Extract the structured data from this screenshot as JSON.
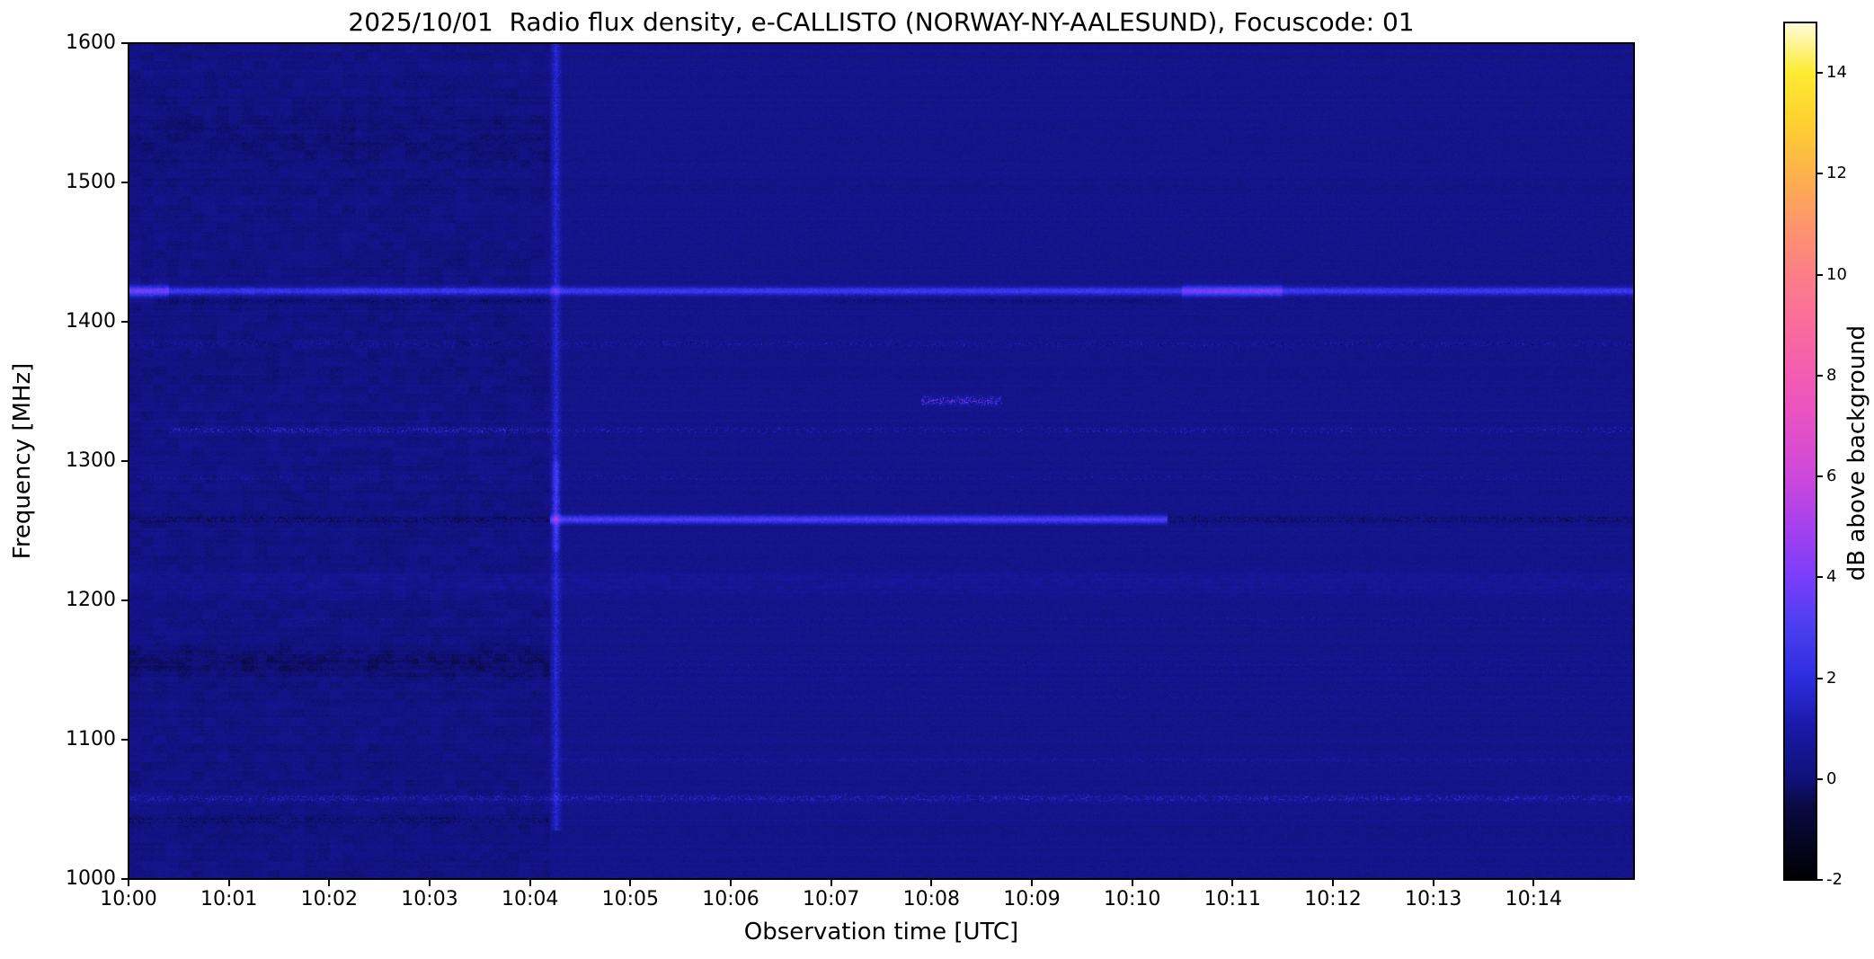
{
  "figure": {
    "background_color": "#ffffff",
    "text_color": "#000000",
    "date": "2025/10/01",
    "station": "NORWAY-NY-AALESUND",
    "focuscode": "01"
  },
  "chart_data": {
    "type": "heatmap",
    "title": "2025/10/01  Radio flux density, e-CALLISTO (NORWAY-NY-AALESUND), Focuscode: 01",
    "xlabel": "Observation time [UTC]",
    "ylabel": "Frequency [MHz]",
    "x_range": [
      "10:00",
      "10:15"
    ],
    "time_span_minutes": 15,
    "x_ticks": [
      {
        "minute": 0,
        "label": "10:00"
      },
      {
        "minute": 1,
        "label": "10:01"
      },
      {
        "minute": 2,
        "label": "10:02"
      },
      {
        "minute": 3,
        "label": "10:03"
      },
      {
        "minute": 4,
        "label": "10:04"
      },
      {
        "minute": 5,
        "label": "10:05"
      },
      {
        "minute": 6,
        "label": "10:06"
      },
      {
        "minute": 7,
        "label": "10:07"
      },
      {
        "minute": 8,
        "label": "10:08"
      },
      {
        "minute": 9,
        "label": "10:09"
      },
      {
        "minute": 10,
        "label": "10:10"
      },
      {
        "minute": 11,
        "label": "10:11"
      },
      {
        "minute": 12,
        "label": "10:12"
      },
      {
        "minute": 13,
        "label": "10:13"
      },
      {
        "minute": 14,
        "label": "10:14"
      }
    ],
    "y_ticks": [
      1000,
      1100,
      1200,
      1300,
      1400,
      1500,
      1600
    ],
    "y_range": [
      1000,
      1600
    ],
    "colorbar": {
      "label": "dB above background",
      "ticks": [
        -2,
        0,
        2,
        4,
        6,
        8,
        10,
        12,
        14
      ],
      "range": [
        -2,
        15
      ]
    },
    "colormap_stops": [
      {
        "value": -2,
        "color": "#000000"
      },
      {
        "value": -0.5,
        "color": "#0a0a46"
      },
      {
        "value": 0,
        "color": "#11117a"
      },
      {
        "value": 1,
        "color": "#1919a5"
      },
      {
        "value": 2,
        "color": "#2d2de0"
      },
      {
        "value": 3,
        "color": "#4b3ef0"
      },
      {
        "value": 4,
        "color": "#7a3efa"
      },
      {
        "value": 5,
        "color": "#a541ee"
      },
      {
        "value": 6,
        "color": "#cd48da"
      },
      {
        "value": 7,
        "color": "#e450c6"
      },
      {
        "value": 8,
        "color": "#f35cb2"
      },
      {
        "value": 9,
        "color": "#fa6c9c"
      },
      {
        "value": 10,
        "color": "#fc7e88"
      },
      {
        "value": 11,
        "color": "#fd966c"
      },
      {
        "value": 12,
        "color": "#fdb24c"
      },
      {
        "value": 13,
        "color": "#fed030"
      },
      {
        "value": 14,
        "color": "#feea32"
      },
      {
        "value": 15,
        "color": "#fffcdc"
      }
    ],
    "base_level": 0.32,
    "noise_db": 0.55,
    "features": {
      "regions": [
        {
          "t_start": 0,
          "t_end": 4.2,
          "amp_db": -0.1,
          "mottled": true,
          "description": "first file segment (10:00-10:04.2): slightly darker mottled background"
        },
        {
          "t_start": 4.2,
          "t_end": 15,
          "amp_db": 0.05,
          "mottled": false,
          "description": "later segment: slightly brighter smoother background"
        }
      ],
      "vertical_events": [
        {
          "t_min": 4.26,
          "halfwidth_min": 0.07,
          "amp_db": 1.6,
          "f_min": 1035,
          "f_max": 1600,
          "description": "bright vertical stripe at ~10:04.3 across most frequencies"
        },
        {
          "t_min": 4.26,
          "halfwidth_min": 0.05,
          "amp_db": 1.3,
          "f_min": 1235,
          "f_max": 1300,
          "description": "strongest part of vertical stripe between 1235 and 1300 MHz"
        }
      ],
      "horizontal_bands": [
        {
          "freq_mhz": 1422,
          "halfwidth_mhz": 3,
          "amp_db": 2.2,
          "mode": "solid",
          "t_start": 0,
          "t_end": 15,
          "density": 1,
          "description": "persistent bright blue interference band near 1422 MHz"
        },
        {
          "freq_mhz": 1422,
          "halfwidth_mhz": 4.5,
          "amp_db": 1.3,
          "mode": "solid",
          "t_start": 10.5,
          "t_end": 11.5,
          "density": 1,
          "description": "brighter segment of 1422 MHz band near 10:11"
        },
        {
          "freq_mhz": 1422,
          "halfwidth_mhz": 5,
          "amp_db": 1.4,
          "mode": "solid",
          "t_start": 0,
          "t_end": 0.4,
          "density": 1,
          "description": "bright start of 1422 MHz band at 10:00"
        },
        {
          "freq_mhz": 1415,
          "halfwidth_mhz": 2,
          "amp_db": -1.2,
          "mode": "speckle",
          "t_start": 0.3,
          "t_end": 4.2,
          "density": 0.5,
          "description": "dark dropout speckles just below 1422 band"
        },
        {
          "freq_mhz": 1415,
          "halfwidth_mhz": 2,
          "amp_db": -1.0,
          "mode": "speckle",
          "t_start": 6.9,
          "t_end": 10.4,
          "density": 0.45,
          "description": "dark dropout speckles just below 1422 band"
        },
        {
          "freq_mhz": 1384,
          "halfwidth_mhz": 2.5,
          "amp_db": 1.4,
          "mode": "speckle",
          "t_start": 0,
          "t_end": 15,
          "density": 0.5,
          "description": "speckled band at 1384 MHz"
        },
        {
          "freq_mhz": 1384,
          "halfwidth_mhz": 2.5,
          "amp_db": -0.9,
          "mode": "speckle",
          "t_start": 0,
          "t_end": 15,
          "density": 0.3,
          "description": "dark speckles mixed into 1384 MHz band"
        },
        {
          "freq_mhz": 1343,
          "halfwidth_mhz": 3,
          "amp_db": 5.5,
          "mode": "speckle",
          "t_start": 7.9,
          "t_end": 8.7,
          "density": 0.55,
          "description": "bright magenta burst near 1343 MHz around 10:08-10:09"
        },
        {
          "freq_mhz": 1322,
          "halfwidth_mhz": 2.5,
          "amp_db": 3.2,
          "mode": "speckle",
          "t_start": 0.4,
          "t_end": 4.2,
          "density": 0.45,
          "description": "dense violet/pink speckles at 1322 MHz before 10:04"
        },
        {
          "freq_mhz": 1322,
          "halfwidth_mhz": 2.5,
          "amp_db": 2.4,
          "mode": "speckle",
          "t_start": 4.2,
          "t_end": 15,
          "density": 0.22,
          "description": "sparse speckles at 1322 MHz after 10:04"
        },
        {
          "freq_mhz": 1288,
          "halfwidth_mhz": 2.5,
          "amp_db": 1.3,
          "mode": "speckle",
          "t_start": 0,
          "t_end": 15,
          "density": 0.35,
          "description": "faint speckled band at 1288 MHz"
        },
        {
          "freq_mhz": 1258,
          "halfwidth_mhz": 3,
          "amp_db": -1.3,
          "mode": "speckle",
          "t_start": 0,
          "t_end": 4.2,
          "density": 0.7,
          "description": "dark speckled band at 1258 MHz before 10:04"
        },
        {
          "freq_mhz": 1258,
          "halfwidth_mhz": 3,
          "amp_db": 2.5,
          "mode": "solid",
          "t_start": 4.2,
          "t_end": 10.35,
          "density": 1,
          "description": "bright blue band at 1258 MHz between 10:04 and 10:10"
        },
        {
          "freq_mhz": 1258,
          "halfwidth_mhz": 3,
          "amp_db": -1.4,
          "mode": "speckle",
          "t_start": 10.35,
          "t_end": 15,
          "density": 0.7,
          "description": "dark speckled band at 1258 MHz after 10:10"
        },
        {
          "freq_mhz": 1213,
          "halfwidth_mhz": 9,
          "amp_db": 0.45,
          "mode": "texture",
          "t_start": 0,
          "t_end": 15,
          "density": 0.8,
          "description": "broad mottled band near 1213 MHz"
        },
        {
          "freq_mhz": 1186,
          "halfwidth_mhz": 2.5,
          "amp_db": 1.0,
          "mode": "speckle",
          "t_start": 0,
          "t_end": 15,
          "density": 0.35,
          "description": "faint speckled band at 1186 MHz"
        },
        {
          "freq_mhz": 1155,
          "halfwidth_mhz": 11,
          "amp_db": -0.5,
          "mode": "texture",
          "t_start": 0,
          "t_end": 4.2,
          "density": 0.9,
          "description": "dark textured band 1145-1165 MHz before 10:04"
        },
        {
          "freq_mhz": 1152,
          "halfwidth_mhz": 8,
          "amp_db": 0.7,
          "mode": "speckle",
          "t_start": 4.2,
          "t_end": 15,
          "density": 0.4,
          "description": "speckled band near 1152 MHz after 10:04"
        },
        {
          "freq_mhz": 1130,
          "halfwidth_mhz": 4,
          "amp_db": 0.8,
          "mode": "speckle",
          "t_start": 4.2,
          "t_end": 15,
          "density": 0.4,
          "description": "speckled band at 1130 MHz"
        },
        {
          "freq_mhz": 1085,
          "halfwidth_mhz": 3,
          "amp_db": 0.9,
          "mode": "speckle",
          "t_start": 4.2,
          "t_end": 15,
          "density": 0.45,
          "description": "speckled band at 1085 MHz"
        },
        {
          "freq_mhz": 1058,
          "halfwidth_mhz": 3,
          "amp_db": 2.4,
          "mode": "speckle",
          "t_start": 0,
          "t_end": 15,
          "density": 0.5,
          "description": "speckled band at 1058 MHz with occasional bright dots"
        },
        {
          "freq_mhz": 1042,
          "halfwidth_mhz": 3,
          "amp_db": -1.1,
          "mode": "speckle",
          "t_start": 0,
          "t_end": 4.2,
          "density": 0.6,
          "description": "dark band at 1042 MHz before 10:04"
        },
        {
          "freq_mhz": 1530,
          "halfwidth_mhz": 28,
          "amp_db": -0.25,
          "mode": "texture",
          "t_start": 0,
          "t_end": 4.2,
          "density": 0.7,
          "description": "mottled darker patches 1500-1560 MHz before 10:04"
        },
        {
          "freq_mhz": 1475,
          "halfwidth_mhz": 8,
          "amp_db": 0.5,
          "mode": "speckle",
          "t_start": 4.2,
          "t_end": 15,
          "density": 0.4,
          "description": "faint textured band near 1475 MHz after 10:04"
        },
        {
          "freq_mhz": 1455,
          "halfwidth_mhz": 6,
          "amp_db": 0.4,
          "mode": "speckle",
          "t_start": 4.2,
          "t_end": 15,
          "density": 0.3,
          "description": "faint textured band near 1455 MHz after 10:04"
        }
      ]
    }
  }
}
